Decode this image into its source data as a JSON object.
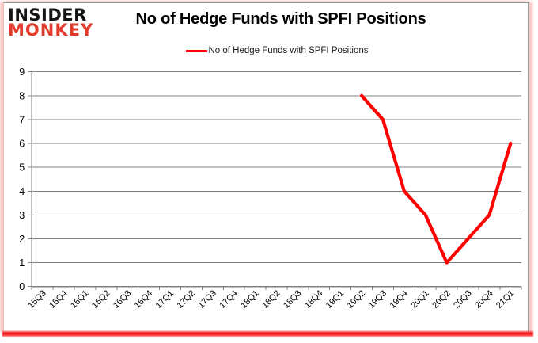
{
  "logo": {
    "line1": "INSIDER",
    "line2": "MONKEY"
  },
  "header": {
    "title": "No of Hedge Funds with SPFI Positions"
  },
  "legend": {
    "label": "No of Hedge Funds with SPFI Positions"
  },
  "colors": {
    "line": "#ff0000",
    "grid": "#808080",
    "axis": "#808080",
    "tick": "#808080",
    "label": "#000000",
    "logo_red": "#e23b2b",
    "logo_black": "#141414",
    "bottom_glow": "#ff0000"
  },
  "chart_data": {
    "type": "line",
    "title": "No of Hedge Funds with SPFI Positions",
    "categories": [
      "15Q3",
      "15Q4",
      "16Q1",
      "16Q2",
      "16Q3",
      "16Q4",
      "17Q1",
      "17Q2",
      "17Q3",
      "17Q4",
      "18Q1",
      "18Q2",
      "18Q3",
      "18Q4",
      "19Q1",
      "19Q2",
      "19Q3",
      "19Q4",
      "20Q1",
      "20Q2",
      "20Q3",
      "20Q4",
      "21Q1"
    ],
    "series": [
      {
        "name": "No of Hedge Funds with SPFI Positions",
        "values": [
          null,
          null,
          null,
          null,
          null,
          null,
          null,
          null,
          null,
          null,
          null,
          null,
          null,
          null,
          null,
          8,
          7,
          4,
          3,
          1,
          2,
          3,
          6
        ]
      }
    ],
    "xlabel": "",
    "ylabel": "",
    "ylim": [
      0,
      9
    ],
    "ytick_step": 1,
    "grid": true,
    "legend_position": "top-center"
  }
}
